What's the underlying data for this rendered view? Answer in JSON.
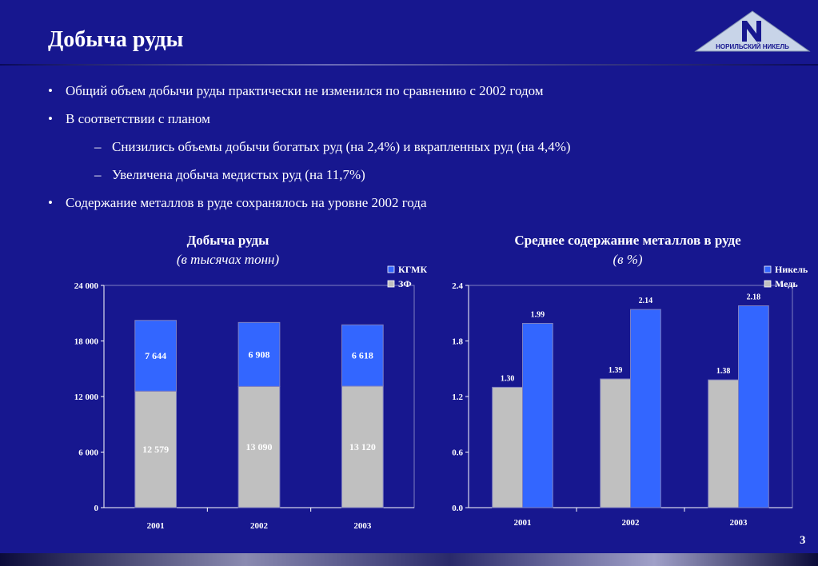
{
  "page": {
    "title": "Добыча руды",
    "page_number": "3",
    "logo_text": "НОРИЛЬСКИЙ НИКЕЛЬ"
  },
  "bullets": [
    {
      "level": 1,
      "text": "Общий объем добычи руды практически не изменился по сравнению с 2002 годом"
    },
    {
      "level": 1,
      "text": "В соответствии с планом"
    },
    {
      "level": 2,
      "text": "Снизились объемы добычи богатых руд (на 2,4%) и вкрапленных руд (на 4,4%)"
    },
    {
      "level": 2,
      "text": "Увеличена добыча медистых руд (на 11,7%)"
    },
    {
      "level": 1,
      "text": "Содержание металлов в руде сохранялось на уровне 2002 года"
    }
  ],
  "colors": {
    "background": "#17178f",
    "gray_series": "#c0c0c0",
    "blue_series": "#3366ff",
    "plot_border": "#7f7fc0"
  },
  "chart_data": [
    {
      "type": "bar",
      "stacked": true,
      "title": "Добыча руды",
      "subtitle": "(в тысячах тонн)",
      "categories": [
        "2001",
        "2002",
        "2003"
      ],
      "series": [
        {
          "name": "ЗФ",
          "values": [
            12579,
            13090,
            13120
          ],
          "labels": [
            "12 579",
            "13 090",
            "13 120"
          ],
          "color": "#c0c0c0"
        },
        {
          "name": "КГМК",
          "values": [
            7644,
            6908,
            6618
          ],
          "labels": [
            "7 644",
            "6 908",
            "6 618"
          ],
          "color": "#3366ff"
        }
      ],
      "legend": [
        "КГМК",
        "ЗФ"
      ],
      "legend_position": "top-right",
      "ylim": [
        0,
        24000
      ],
      "yticks": [
        0,
        6000,
        12000,
        18000,
        24000
      ],
      "ytick_labels": [
        "0",
        "6 000",
        "12 000",
        "18 000",
        "24 000"
      ],
      "grid": false
    },
    {
      "type": "bar",
      "stacked": false,
      "title": "Среднее содержание металлов в руде",
      "subtitle": "(в %)",
      "categories": [
        "2001",
        "2002",
        "2003"
      ],
      "series": [
        {
          "name": "Медь",
          "values": [
            1.3,
            1.39,
            1.38
          ],
          "labels": [
            "1.30",
            "1.39",
            "1.38"
          ],
          "color": "#c0c0c0"
        },
        {
          "name": "Никель",
          "values": [
            1.99,
            2.14,
            2.18
          ],
          "labels": [
            "1.99",
            "2.14",
            "2.18"
          ],
          "color": "#3366ff"
        }
      ],
      "legend": [
        "Никель",
        "Медь"
      ],
      "legend_position": "top-right",
      "ylim": [
        0,
        2.4
      ],
      "yticks": [
        0,
        0.6,
        1.2,
        1.8,
        2.4
      ],
      "ytick_labels": [
        "0.0",
        "0.6",
        "1.2",
        "1.8",
        "2.4"
      ],
      "grid": false
    }
  ]
}
